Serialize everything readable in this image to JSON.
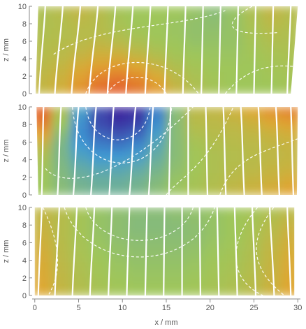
{
  "chart_data": {
    "type": "heatmap",
    "x_axis": {
      "label": "x / mm",
      "range": [
        -0.3,
        30.3
      ],
      "ticks": [
        0,
        5,
        10,
        15,
        20,
        25,
        30
      ],
      "tick_labels": [
        "0",
        "5",
        "10",
        "15",
        "20",
        "25",
        "30"
      ]
    },
    "y_axis": {
      "label": "z / mm",
      "range": [
        0,
        10
      ],
      "ticks": [
        0,
        2,
        4,
        6,
        8,
        10
      ],
      "tick_labels": [
        "0",
        "2",
        "4",
        "6",
        "8",
        "10"
      ]
    },
    "colors": {
      "low": "#3a1f9a",
      "mid_low": "#3f9ad3",
      "mid": "#9fc65a",
      "mid_high": "#e0a630",
      "high": "#e4552a",
      "field_lines": "#ffffff",
      "contours": "#ffffff",
      "axes": "#8a8a8a"
    },
    "panels": [
      {
        "name": "top",
        "grid": false,
        "field_line_style": "solid white",
        "contour_style": "dashed white",
        "field_line_top_x": [
          1.2,
          3.2,
          5.2,
          7.2,
          9.2,
          11.2,
          13.2,
          15.2,
          17.2,
          19.2,
          21.2,
          23.2,
          25.2,
          27.2,
          29.2
        ],
        "field_line_bottom_x": [
          0.5,
          2.3,
          4.2,
          6.2,
          8.3,
          10.4,
          12.6,
          14.8,
          16.9,
          19.0,
          21.0,
          23.0,
          25.0,
          27.0,
          28.8
        ],
        "field_values": [
          [
            0.55,
            0.58,
            0.62,
            0.58,
            0.52,
            0.5,
            0.5,
            0.5,
            0.48,
            0.45,
            0.48,
            0.55,
            0.62,
            0.58
          ],
          [
            0.55,
            0.57,
            0.6,
            0.58,
            0.53,
            0.5,
            0.5,
            0.49,
            0.47,
            0.46,
            0.48,
            0.54,
            0.6,
            0.57
          ],
          [
            0.56,
            0.57,
            0.58,
            0.58,
            0.55,
            0.52,
            0.5,
            0.49,
            0.47,
            0.47,
            0.48,
            0.53,
            0.57,
            0.56
          ],
          [
            0.57,
            0.58,
            0.6,
            0.62,
            0.6,
            0.56,
            0.52,
            0.5,
            0.48,
            0.48,
            0.48,
            0.52,
            0.55,
            0.55
          ],
          [
            0.58,
            0.6,
            0.64,
            0.68,
            0.68,
            0.63,
            0.57,
            0.52,
            0.5,
            0.49,
            0.49,
            0.51,
            0.53,
            0.54
          ],
          [
            0.6,
            0.63,
            0.7,
            0.76,
            0.78,
            0.73,
            0.64,
            0.56,
            0.52,
            0.5,
            0.5,
            0.5,
            0.52,
            0.53
          ],
          [
            0.62,
            0.66,
            0.76,
            0.85,
            0.88,
            0.83,
            0.72,
            0.6,
            0.54,
            0.51,
            0.5,
            0.5,
            0.51,
            0.52
          ],
          [
            0.63,
            0.68,
            0.8,
            0.92,
            0.96,
            0.9,
            0.78,
            0.64,
            0.56,
            0.52,
            0.5,
            0.5,
            0.5,
            0.52
          ]
        ]
      },
      {
        "name": "middle",
        "grid": false,
        "field_line_style": "solid white",
        "contour_style": "dashed white",
        "field_line_top_x": [
          1.0,
          3.0,
          5.0,
          7.0,
          9.0,
          11.5,
          13.5,
          15.5,
          17.5,
          19.5,
          21.5,
          23.5,
          25.5,
          27.5,
          29.2
        ],
        "field_line_bottom_x": [
          0.8,
          2.6,
          4.4,
          6.4,
          8.5,
          10.8,
          13.0,
          15.3,
          17.5,
          19.7,
          21.8,
          23.9,
          25.9,
          27.9,
          29.5
        ],
        "field_values": [
          [
            0.95,
            0.55,
            0.3,
            0.1,
            0.02,
            0.04,
            0.22,
            0.45,
            0.6,
            0.62,
            0.66,
            0.72,
            0.8,
            0.85
          ],
          [
            0.88,
            0.5,
            0.26,
            0.1,
            0.05,
            0.08,
            0.25,
            0.45,
            0.58,
            0.6,
            0.62,
            0.66,
            0.72,
            0.76
          ],
          [
            0.75,
            0.45,
            0.25,
            0.16,
            0.12,
            0.16,
            0.3,
            0.45,
            0.55,
            0.58,
            0.6,
            0.62,
            0.65,
            0.68
          ],
          [
            0.62,
            0.42,
            0.28,
            0.22,
            0.2,
            0.24,
            0.34,
            0.45,
            0.52,
            0.56,
            0.58,
            0.6,
            0.62,
            0.64
          ],
          [
            0.55,
            0.42,
            0.32,
            0.28,
            0.28,
            0.3,
            0.37,
            0.45,
            0.51,
            0.55,
            0.57,
            0.59,
            0.61,
            0.63
          ],
          [
            0.52,
            0.43,
            0.36,
            0.33,
            0.33,
            0.35,
            0.4,
            0.46,
            0.51,
            0.55,
            0.58,
            0.6,
            0.63,
            0.65
          ],
          [
            0.5,
            0.44,
            0.39,
            0.37,
            0.37,
            0.39,
            0.43,
            0.48,
            0.52,
            0.56,
            0.6,
            0.63,
            0.66,
            0.7
          ],
          [
            0.5,
            0.45,
            0.41,
            0.39,
            0.39,
            0.41,
            0.45,
            0.49,
            0.53,
            0.57,
            0.62,
            0.66,
            0.7,
            0.75
          ]
        ]
      },
      {
        "name": "bottom",
        "grid": false,
        "field_line_style": "solid white",
        "contour_style": "dashed white",
        "field_line_top_x": [
          0.8,
          2.8,
          4.8,
          6.8,
          8.8,
          10.8,
          12.8,
          14.8,
          16.8,
          18.8,
          20.8,
          22.8,
          24.8,
          26.8,
          28.8
        ],
        "field_line_bottom_x": [
          0.4,
          2.3,
          4.3,
          6.3,
          8.4,
          10.5,
          12.6,
          14.7,
          16.8,
          18.9,
          21.0,
          23.1,
          25.2,
          27.3,
          29.2
        ],
        "field_values": [
          [
            0.62,
            0.58,
            0.52,
            0.48,
            0.46,
            0.45,
            0.45,
            0.46,
            0.47,
            0.48,
            0.5,
            0.52,
            0.56,
            0.6
          ],
          [
            0.64,
            0.58,
            0.52,
            0.48,
            0.46,
            0.44,
            0.44,
            0.45,
            0.46,
            0.48,
            0.5,
            0.53,
            0.58,
            0.64
          ],
          [
            0.66,
            0.58,
            0.52,
            0.48,
            0.46,
            0.45,
            0.45,
            0.45,
            0.46,
            0.48,
            0.5,
            0.54,
            0.6,
            0.67
          ],
          [
            0.68,
            0.59,
            0.53,
            0.49,
            0.47,
            0.46,
            0.46,
            0.46,
            0.47,
            0.49,
            0.51,
            0.55,
            0.62,
            0.69
          ],
          [
            0.7,
            0.6,
            0.54,
            0.5,
            0.48,
            0.47,
            0.47,
            0.47,
            0.48,
            0.5,
            0.52,
            0.56,
            0.63,
            0.71
          ],
          [
            0.71,
            0.61,
            0.55,
            0.51,
            0.49,
            0.48,
            0.48,
            0.48,
            0.49,
            0.51,
            0.53,
            0.57,
            0.64,
            0.72
          ],
          [
            0.72,
            0.62,
            0.56,
            0.52,
            0.5,
            0.49,
            0.49,
            0.49,
            0.5,
            0.52,
            0.54,
            0.58,
            0.65,
            0.73
          ],
          [
            0.73,
            0.63,
            0.57,
            0.53,
            0.51,
            0.5,
            0.5,
            0.5,
            0.51,
            0.53,
            0.55,
            0.59,
            0.66,
            0.74
          ]
        ]
      }
    ]
  }
}
